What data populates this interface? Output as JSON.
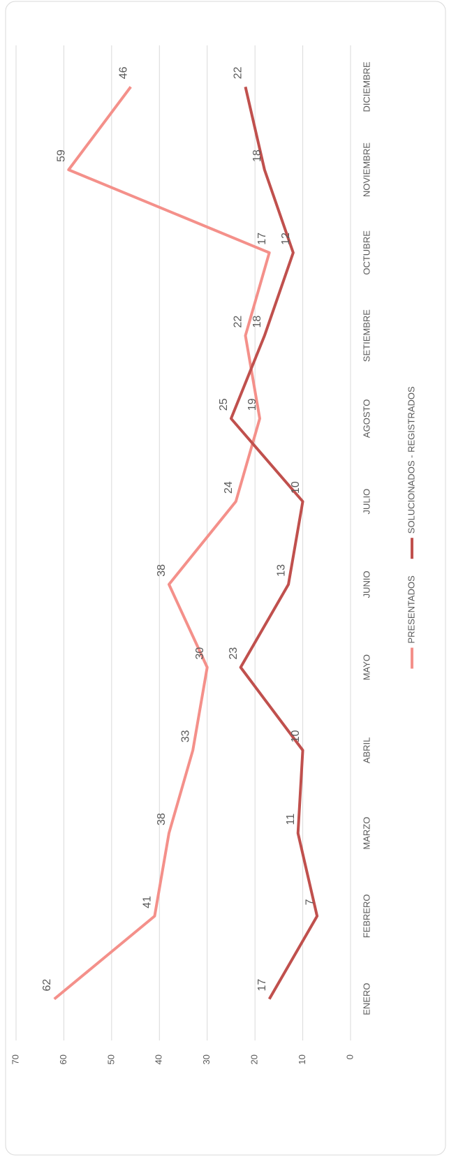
{
  "chart_data": {
    "type": "line",
    "categories": [
      "ENERO",
      "FEBRERO",
      "MARZO",
      "ABRIL",
      "MAYO",
      "JUNIO",
      "JULIO",
      "AGOSTO",
      "SETIEMBRE",
      "OCTUBRE",
      "NOVIEMBRE",
      "DICIEMBRE"
    ],
    "series": [
      {
        "name": "PRESENTADOS",
        "color": "#f4908a",
        "values": [
          62,
          41,
          38,
          33,
          30,
          38,
          24,
          19,
          22,
          17,
          59,
          46
        ]
      },
      {
        "name": "SOLUCIONADOS - REGISTRADOS",
        "color": "#c0504d",
        "values": [
          17,
          7,
          11,
          10,
          23,
          13,
          10,
          25,
          18,
          12,
          18,
          22
        ]
      }
    ],
    "ylim": [
      0,
      70
    ],
    "yticks": [
      0,
      10,
      20,
      30,
      40,
      50,
      60,
      70
    ],
    "grid": true,
    "legend": "bottom"
  }
}
